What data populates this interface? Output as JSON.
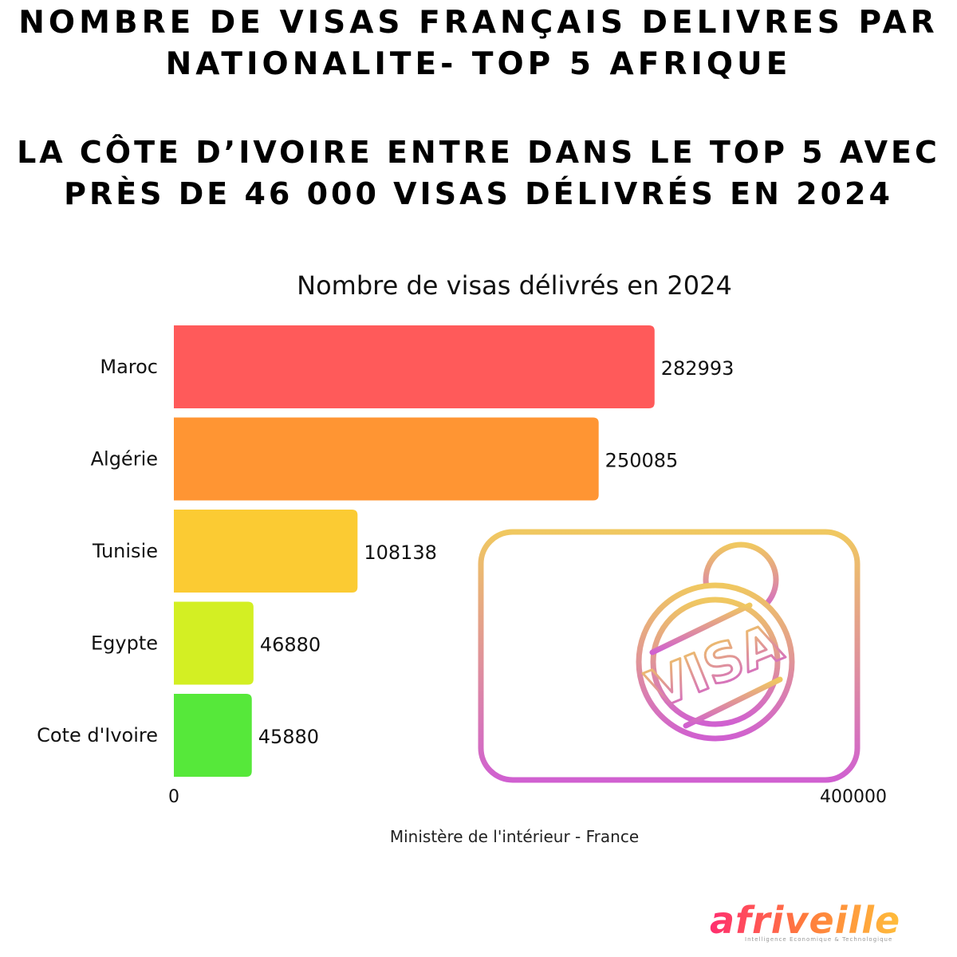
{
  "header": {
    "title_line1": "NOMBRE DE VISAS FRANÇAIS DELIVRES PAR",
    "title_line2": "NATIONALITE- TOP 5 AFRIQUE",
    "subtitle_line1": "LA CÔTE D’IVOIRE ENTRE DANS LE TOP 5 AVEC",
    "subtitle_line2": "PRÈS DE 46 000 VISAS DÉLIVRÉS EN 2024"
  },
  "chart_data": {
    "type": "bar",
    "orientation": "horizontal",
    "title": "Nombre de visas délivrés en 2024",
    "categories": [
      "Maroc",
      "Algérie",
      "Tunisie",
      "Egypte",
      "Cote d'Ivoire"
    ],
    "values": [
      282993,
      250085,
      108138,
      46880,
      45880
    ],
    "colors": [
      "#ff5a5a",
      "#ff9533",
      "#fbcb33",
      "#d3ef23",
      "#56e83a"
    ],
    "xlim": [
      0,
      400000
    ],
    "x_ticks": [
      "0",
      "400000"
    ],
    "grid": false,
    "legend": "none"
  },
  "illustration": {
    "icon": "visa-document-icon",
    "stamp_text": "VISA",
    "gradient_colors": [
      "#f0c860",
      "#d060d0"
    ]
  },
  "footer": {
    "source": "Ministère de l'intérieur - France",
    "logo_text": "afriveille",
    "logo_tagline": "Intelligence Economique & Technologique"
  }
}
